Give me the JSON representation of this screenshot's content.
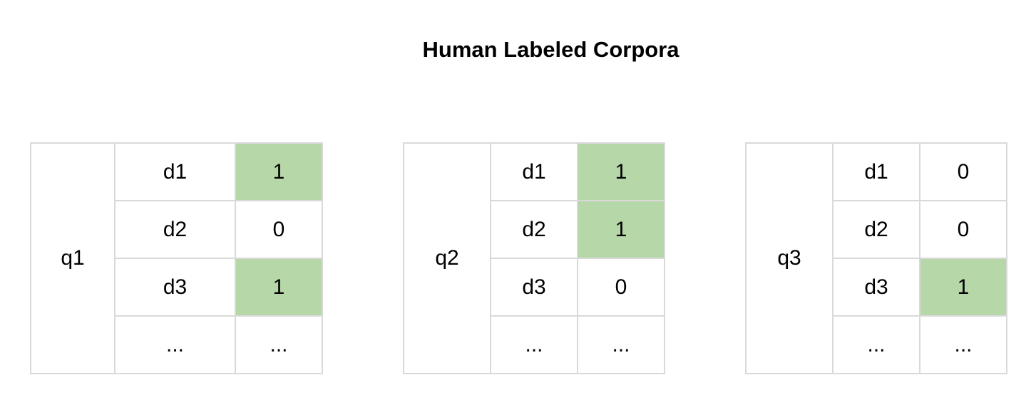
{
  "title": "Human Labeled Corpora",
  "highlight_color": "#b6d7a8",
  "queries": [
    {
      "label": "q1",
      "rows": [
        {
          "doc": "d1",
          "label": "1"
        },
        {
          "doc": "d2",
          "label": "0"
        },
        {
          "doc": "d3",
          "label": "1"
        },
        {
          "doc": "...",
          "label": "..."
        }
      ]
    },
    {
      "label": "q2",
      "rows": [
        {
          "doc": "d1",
          "label": "1"
        },
        {
          "doc": "d2",
          "label": "1"
        },
        {
          "doc": "d3",
          "label": "0"
        },
        {
          "doc": "...",
          "label": "..."
        }
      ]
    },
    {
      "label": "q3",
      "rows": [
        {
          "doc": "d1",
          "label": "0"
        },
        {
          "doc": "d2",
          "label": "0"
        },
        {
          "doc": "d3",
          "label": "1"
        },
        {
          "doc": "...",
          "label": "..."
        }
      ]
    }
  ]
}
